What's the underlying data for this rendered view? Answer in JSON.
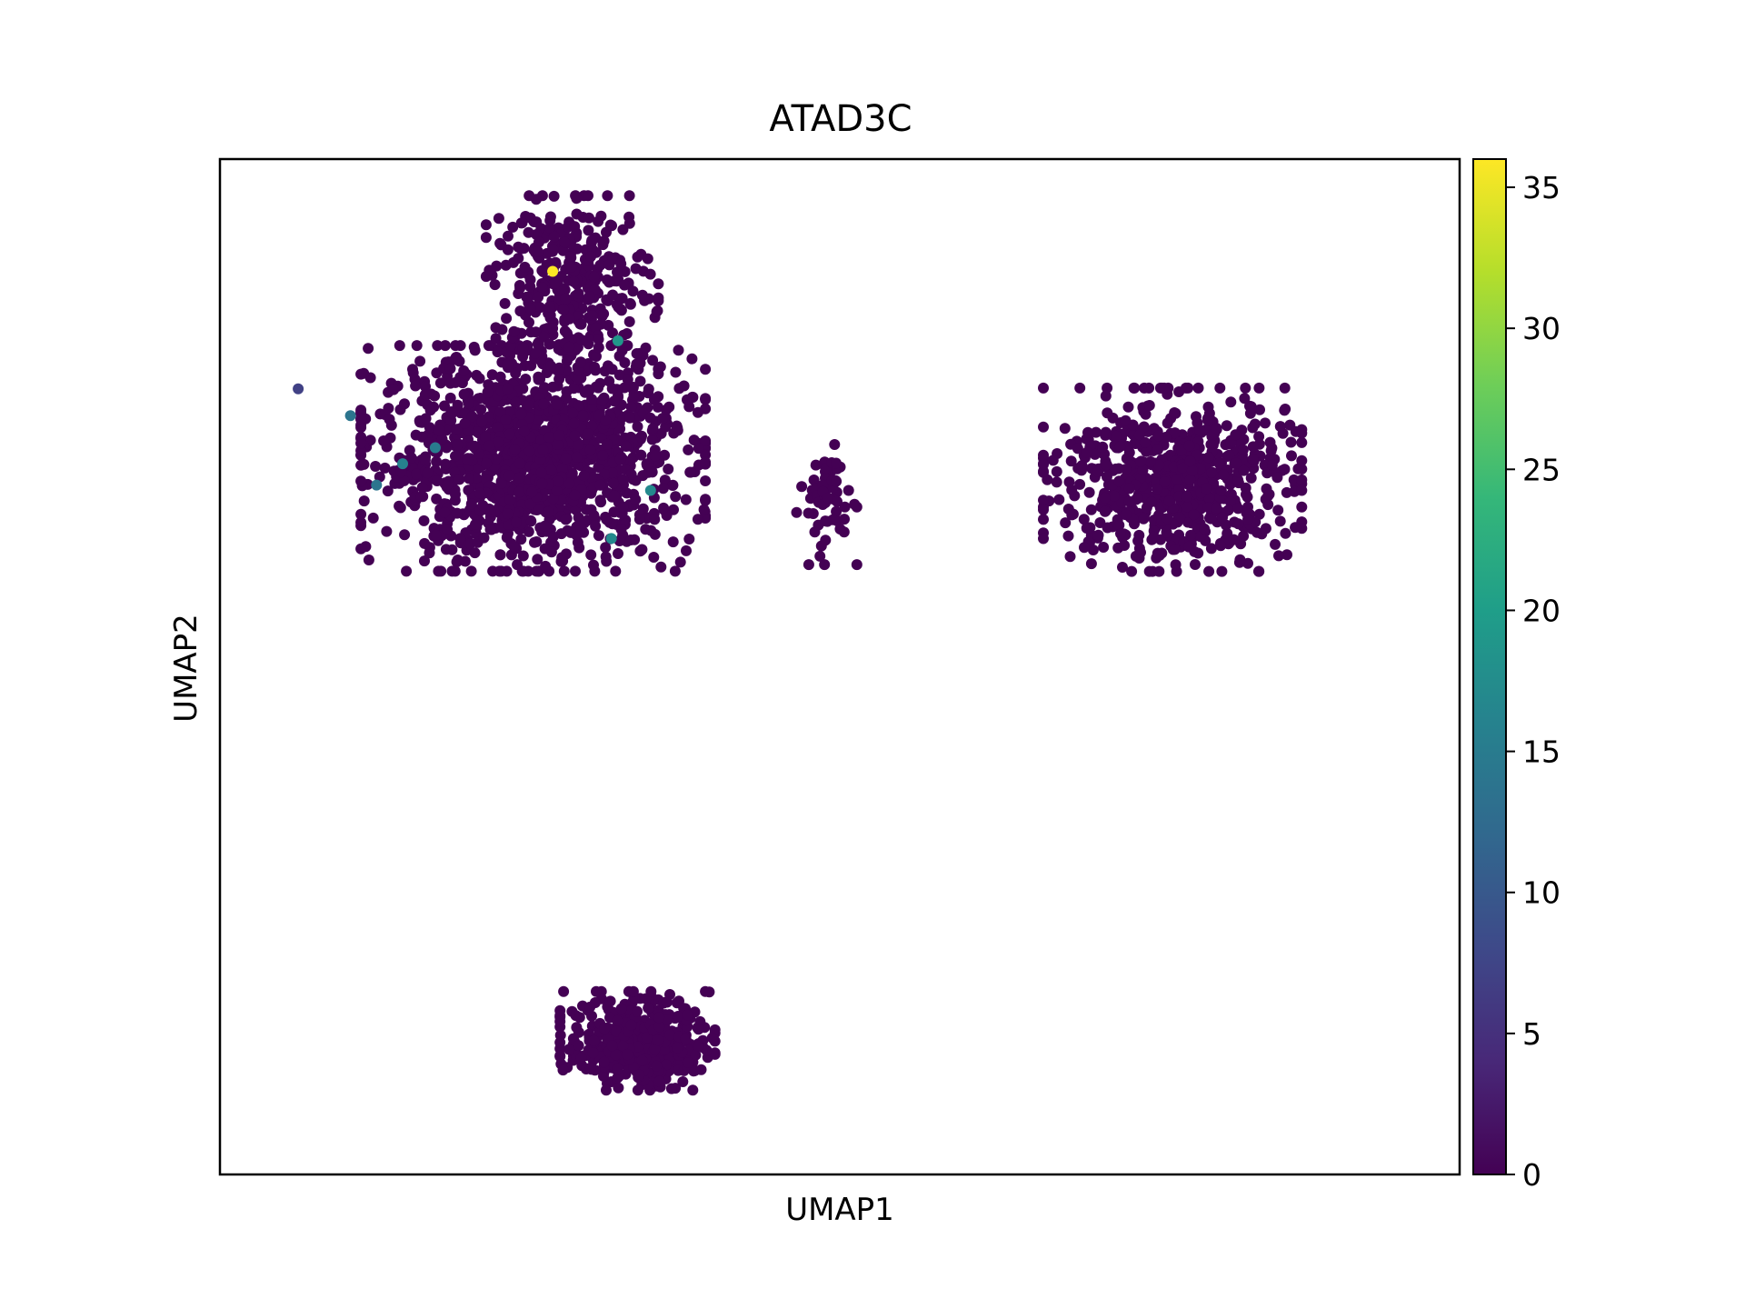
{
  "chart_data": {
    "type": "scatter",
    "title": "ATAD3C",
    "xlabel": "UMAP1",
    "ylabel": "UMAP2",
    "colormap": "viridis",
    "colorbar": {
      "min": 0,
      "max": 36,
      "ticks": [
        0,
        5,
        10,
        15,
        20,
        25,
        30,
        35
      ],
      "tick_labels": [
        "0",
        "5",
        "10",
        "15",
        "20",
        "25",
        "30",
        "35"
      ]
    },
    "axes": {
      "xticks": false,
      "yticks": false,
      "grid": false
    },
    "clusters": [
      {
        "name": "",
        "center": [
          -4.2,
          3.4
        ],
        "spread": [
          2.0,
          1.6
        ],
        "count": 1400,
        "base_value": 0
      },
      {
        "name": "",
        "center": [
          -3.6,
          6.6
        ],
        "spread": [
          1.0,
          1.3
        ],
        "count": 350,
        "base_value": 0
      },
      {
        "name": "",
        "center": [
          5.6,
          3.0
        ],
        "spread": [
          1.5,
          1.3
        ],
        "count": 700,
        "base_value": 0
      },
      {
        "name": "",
        "center": [
          0.3,
          2.6
        ],
        "spread": [
          0.35,
          0.9
        ],
        "count": 60,
        "base_value": 0
      },
      {
        "name": "",
        "center": [
          -2.6,
          -7.5
        ],
        "spread": [
          0.9,
          0.7
        ],
        "count": 400,
        "base_value": 0
      }
    ],
    "highlighted_points": [
      {
        "x": -3.9,
        "y": 6.9,
        "value": 36
      },
      {
        "x": -2.9,
        "y": 5.6,
        "value": 19
      },
      {
        "x": -5.7,
        "y": 3.6,
        "value": 15
      },
      {
        "x": -6.6,
        "y": 2.9,
        "value": 14
      },
      {
        "x": -7.0,
        "y": 4.2,
        "value": 14
      },
      {
        "x": -7.8,
        "y": 4.7,
        "value": 7
      },
      {
        "x": -6.2,
        "y": 3.3,
        "value": 16
      },
      {
        "x": -2.4,
        "y": 2.8,
        "value": 17
      },
      {
        "x": -3.0,
        "y": 1.9,
        "value": 17
      }
    ]
  }
}
